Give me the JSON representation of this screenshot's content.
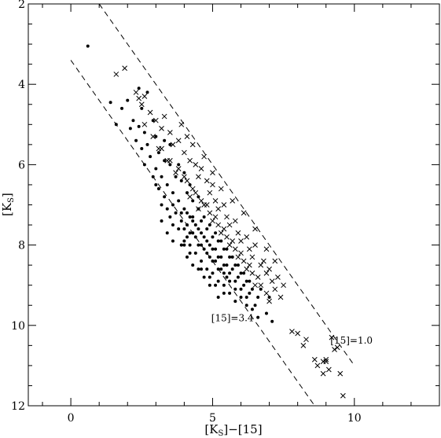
{
  "chart_data": {
    "type": "scatter",
    "title": "",
    "xlabel": {
      "main": "[K",
      "sub": "S",
      "tail": "]−[15]"
    },
    "ylabel": {
      "main": "[K",
      "sub": "S",
      "tail": "]"
    },
    "xlim": [
      -1.5,
      13
    ],
    "ylim": [
      12,
      2
    ],
    "y_inverted": true,
    "x_ticks": [
      0,
      5,
      10
    ],
    "y_ticks": [
      2,
      4,
      6,
      8,
      10,
      12
    ],
    "grid": false,
    "legend": "none",
    "marker_color": "#000000",
    "lines": [
      {
        "label": "[15]=3.4",
        "points": [
          [
            0,
            3.4
          ],
          [
            8.6,
            12
          ]
        ],
        "style": "dashed"
      },
      {
        "label": "[15]=1.0",
        "points": [
          [
            1.0,
            2.0
          ],
          [
            10.0,
            11.0
          ]
        ],
        "style": "dashed"
      }
    ],
    "annotations": [
      {
        "text": "[15]=3.4",
        "x": 5.7,
        "y": 9.9
      },
      {
        "text": "[15]=1.0",
        "x": 9.9,
        "y": 10.45
      }
    ],
    "series": [
      {
        "marker": "dot",
        "points": [
          [
            0.6,
            3.05
          ],
          [
            1.4,
            4.45
          ],
          [
            1.6,
            5.0
          ],
          [
            1.8,
            4.6
          ],
          [
            2.0,
            4.4
          ],
          [
            2.1,
            5.1
          ],
          [
            2.2,
            4.9
          ],
          [
            2.3,
            5.4
          ],
          [
            2.4,
            5.05
          ],
          [
            2.5,
            5.6
          ],
          [
            2.6,
            5.2
          ],
          [
            2.7,
            5.5
          ],
          [
            2.8,
            5.8
          ],
          [
            2.9,
            4.9
          ],
          [
            3.0,
            6.1
          ],
          [
            3.1,
            5.7
          ],
          [
            3.2,
            6.3
          ],
          [
            3.3,
            5.9
          ],
          [
            3.4,
            6.5
          ],
          [
            3.5,
            6.0
          ],
          [
            3.6,
            6.7
          ],
          [
            3.7,
            6.3
          ],
          [
            3.8,
            6.9
          ],
          [
            3.9,
            6.4
          ],
          [
            4.0,
            7.1
          ],
          [
            4.1,
            6.7
          ],
          [
            4.2,
            7.3
          ],
          [
            4.3,
            6.9
          ],
          [
            4.4,
            7.5
          ],
          [
            4.5,
            7.1
          ],
          [
            4.6,
            7.7
          ],
          [
            4.7,
            7.3
          ],
          [
            4.8,
            7.9
          ],
          [
            4.9,
            7.5
          ],
          [
            5.0,
            8.1
          ],
          [
            5.1,
            7.7
          ],
          [
            5.2,
            8.3
          ],
          [
            5.3,
            7.9
          ],
          [
            5.4,
            8.5
          ],
          [
            5.5,
            8.1
          ],
          [
            5.6,
            8.7
          ],
          [
            5.7,
            8.3
          ],
          [
            5.8,
            8.9
          ],
          [
            5.9,
            8.5
          ],
          [
            6.0,
            9.1
          ],
          [
            6.1,
            8.7
          ],
          [
            6.2,
            9.3
          ],
          [
            6.3,
            8.9
          ],
          [
            6.5,
            9.5
          ],
          [
            6.7,
            9.1
          ],
          [
            6.9,
            9.7
          ],
          [
            7.0,
            9.3
          ],
          [
            7.1,
            9.9
          ],
          [
            3.2,
            7.0
          ],
          [
            3.5,
            7.3
          ],
          [
            3.8,
            7.6
          ],
          [
            4.0,
            7.9
          ],
          [
            4.2,
            8.0
          ],
          [
            4.4,
            8.2
          ],
          [
            4.6,
            8.4
          ],
          [
            4.8,
            8.6
          ],
          [
            5.0,
            8.7
          ],
          [
            5.2,
            8.9
          ],
          [
            5.4,
            9.0
          ],
          [
            5.6,
            9.2
          ],
          [
            5.8,
            9.4
          ],
          [
            4.0,
            7.6
          ],
          [
            4.1,
            7.8
          ],
          [
            4.3,
            7.7
          ],
          [
            4.5,
            8.0
          ],
          [
            4.7,
            8.1
          ],
          [
            4.9,
            8.3
          ],
          [
            5.1,
            8.4
          ],
          [
            5.3,
            8.6
          ],
          [
            5.5,
            8.8
          ],
          [
            3.7,
            7.2
          ],
          [
            3.9,
            7.4
          ],
          [
            4.1,
            7.5
          ],
          [
            4.3,
            7.4
          ],
          [
            4.5,
            7.6
          ],
          [
            4.7,
            7.8
          ],
          [
            4.9,
            8.0
          ],
          [
            5.1,
            8.1
          ],
          [
            5.3,
            8.3
          ],
          [
            5.5,
            8.5
          ],
          [
            5.7,
            8.6
          ],
          [
            5.9,
            8.8
          ],
          [
            6.1,
            9.0
          ],
          [
            6.3,
            9.2
          ],
          [
            2.6,
            6.0
          ],
          [
            2.9,
            6.3
          ],
          [
            3.1,
            6.6
          ],
          [
            3.3,
            6.8
          ],
          [
            3.6,
            7.0
          ],
          [
            3.9,
            7.2
          ],
          [
            4.2,
            7.7
          ],
          [
            4.4,
            7.8
          ],
          [
            4.6,
            8.0
          ],
          [
            4.8,
            8.2
          ],
          [
            5.0,
            8.4
          ],
          [
            5.2,
            8.6
          ],
          [
            5.4,
            8.7
          ],
          [
            5.6,
            8.9
          ],
          [
            5.8,
            9.1
          ],
          [
            6.0,
            9.3
          ],
          [
            6.2,
            9.5
          ],
          [
            6.4,
            9.6
          ],
          [
            6.6,
            9.8
          ],
          [
            4.0,
            8.0
          ],
          [
            4.2,
            8.2
          ],
          [
            4.6,
            8.6
          ],
          [
            4.9,
            8.8
          ],
          [
            5.1,
            9.0
          ],
          [
            5.4,
            9.2
          ],
          [
            3.0,
            6.5
          ],
          [
            3.4,
            7.1
          ],
          [
            3.6,
            7.5
          ],
          [
            4.1,
            7.2
          ],
          [
            4.3,
            7.3
          ],
          [
            4.6,
            7.4
          ],
          [
            4.8,
            7.6
          ],
          [
            5.0,
            7.8
          ],
          [
            5.2,
            7.9
          ],
          [
            5.4,
            8.1
          ],
          [
            5.6,
            8.3
          ],
          [
            5.8,
            8.5
          ],
          [
            6.0,
            8.7
          ],
          [
            6.2,
            8.9
          ],
          [
            6.4,
            9.1
          ],
          [
            6.6,
            9.3
          ],
          [
            2.4,
            4.1
          ],
          [
            2.5,
            4.6
          ],
          [
            2.7,
            4.2
          ],
          [
            3.0,
            5.3
          ],
          [
            3.3,
            5.4
          ],
          [
            3.5,
            5.5
          ],
          [
            3.8,
            6.0
          ],
          [
            4.0,
            6.2
          ],
          [
            4.2,
            6.5
          ],
          [
            4.5,
            6.8
          ],
          [
            3.2,
            7.4
          ],
          [
            3.4,
            7.7
          ],
          [
            3.6,
            7.9
          ],
          [
            3.9,
            8.0
          ],
          [
            4.1,
            8.3
          ],
          [
            4.3,
            8.5
          ],
          [
            4.5,
            8.6
          ],
          [
            4.7,
            8.8
          ],
          [
            4.9,
            9.0
          ],
          [
            5.2,
            9.3
          ]
        ]
      },
      {
        "marker": "cross",
        "points": [
          [
            1.6,
            3.75
          ],
          [
            1.9,
            3.6
          ],
          [
            2.3,
            4.2
          ],
          [
            2.4,
            4.35
          ],
          [
            2.5,
            4.5
          ],
          [
            2.6,
            4.3
          ],
          [
            2.8,
            4.7
          ],
          [
            3.0,
            4.9
          ],
          [
            3.2,
            5.1
          ],
          [
            3.3,
            4.8
          ],
          [
            3.5,
            5.2
          ],
          [
            3.6,
            5.5
          ],
          [
            3.8,
            5.4
          ],
          [
            4.0,
            5.7
          ],
          [
            4.1,
            5.3
          ],
          [
            4.2,
            5.9
          ],
          [
            4.4,
            6.0
          ],
          [
            4.5,
            6.3
          ],
          [
            4.6,
            6.1
          ],
          [
            4.8,
            6.4
          ],
          [
            4.9,
            6.7
          ],
          [
            5.0,
            6.5
          ],
          [
            5.1,
            6.9
          ],
          [
            5.2,
            7.1
          ],
          [
            5.4,
            7.0
          ],
          [
            5.5,
            7.3
          ],
          [
            5.6,
            7.5
          ],
          [
            5.8,
            7.4
          ],
          [
            5.9,
            7.7
          ],
          [
            6.0,
            7.9
          ],
          [
            6.2,
            7.8
          ],
          [
            6.3,
            8.1
          ],
          [
            6.4,
            8.3
          ],
          [
            6.5,
            8.0
          ],
          [
            6.7,
            8.5
          ],
          [
            6.8,
            8.4
          ],
          [
            6.9,
            8.7
          ],
          [
            7.0,
            8.6
          ],
          [
            7.1,
            8.9
          ],
          [
            7.2,
            9.1
          ],
          [
            7.3,
            8.8
          ],
          [
            7.4,
            9.3
          ],
          [
            7.5,
            9.0
          ],
          [
            3.9,
            5.0
          ],
          [
            4.3,
            5.5
          ],
          [
            4.7,
            5.8
          ],
          [
            5.0,
            6.2
          ],
          [
            5.3,
            6.6
          ],
          [
            5.7,
            6.9
          ],
          [
            6.1,
            7.2
          ],
          [
            6.5,
            7.6
          ],
          [
            6.9,
            8.1
          ],
          [
            7.2,
            8.4
          ],
          [
            4.0,
            6.3
          ],
          [
            4.3,
            6.6
          ],
          [
            4.6,
            6.9
          ],
          [
            4.9,
            7.2
          ],
          [
            5.2,
            7.5
          ],
          [
            5.5,
            7.8
          ],
          [
            5.8,
            8.1
          ],
          [
            6.1,
            8.4
          ],
          [
            6.4,
            8.7
          ],
          [
            6.7,
            9.0
          ],
          [
            7.0,
            9.4
          ],
          [
            3.1,
            5.6
          ],
          [
            3.4,
            5.9
          ],
          [
            3.7,
            6.2
          ],
          [
            4.2,
            6.8
          ],
          [
            4.5,
            7.1
          ],
          [
            4.8,
            7.0
          ],
          [
            5.1,
            7.3
          ],
          [
            5.4,
            7.6
          ],
          [
            5.7,
            7.9
          ],
          [
            6.0,
            8.2
          ],
          [
            6.3,
            8.5
          ],
          [
            6.6,
            8.8
          ],
          [
            6.9,
            9.2
          ],
          [
            2.6,
            5.0
          ],
          [
            2.9,
            5.3
          ],
          [
            3.2,
            5.6
          ],
          [
            3.5,
            5.9
          ],
          [
            3.8,
            6.1
          ],
          [
            4.1,
            6.4
          ],
          [
            4.4,
            6.7
          ],
          [
            4.7,
            7.0
          ],
          [
            5.0,
            7.4
          ],
          [
            5.3,
            7.7
          ],
          [
            5.6,
            8.0
          ],
          [
            5.9,
            8.3
          ],
          [
            6.2,
            8.6
          ],
          [
            6.5,
            9.0
          ],
          [
            7.8,
            10.15
          ],
          [
            8.0,
            10.2
          ],
          [
            8.2,
            10.5
          ],
          [
            8.3,
            10.35
          ],
          [
            8.6,
            10.85
          ],
          [
            8.7,
            11.0
          ],
          [
            8.9,
            10.9
          ],
          [
            9.0,
            10.9
          ],
          [
            9.1,
            11.1
          ],
          [
            9.2,
            10.3
          ],
          [
            9.3,
            10.6
          ],
          [
            9.4,
            10.55
          ],
          [
            9.5,
            11.2
          ],
          [
            9.6,
            11.75
          ],
          [
            8.9,
            11.2
          ],
          [
            9.0,
            10.85
          ]
        ]
      }
    ]
  }
}
